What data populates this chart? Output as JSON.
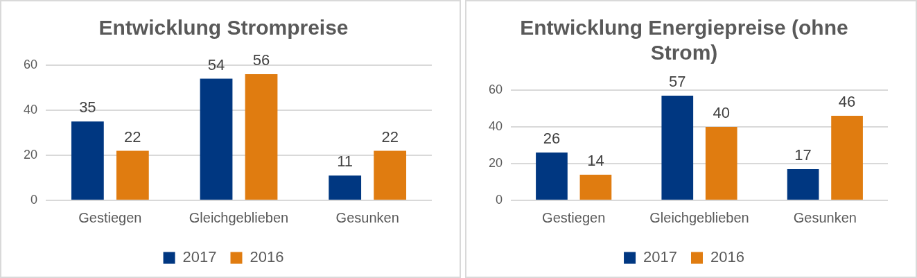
{
  "chart_data": [
    {
      "type": "bar",
      "title": "Entwicklung Strompreise",
      "categories": [
        "Gestiegen",
        "Gleichgeblieben",
        "Gesunken"
      ],
      "series": [
        {
          "name": "2017",
          "color": "#003781",
          "values": [
            35,
            54,
            11
          ]
        },
        {
          "name": "2016",
          "color": "#e07c10",
          "values": [
            22,
            56,
            22
          ]
        }
      ],
      "ylim": [
        0,
        60
      ],
      "yticks": [
        0,
        20,
        40,
        60
      ],
      "grid": "y",
      "legend": "bottom",
      "data_labels": true
    },
    {
      "type": "bar",
      "title": "Entwicklung Energiepreise (ohne Strom)",
      "categories": [
        "Gestiegen",
        "Gleichgeblieben",
        "Gesunken"
      ],
      "series": [
        {
          "name": "2017",
          "color": "#003781",
          "values": [
            26,
            57,
            17
          ]
        },
        {
          "name": "2016",
          "color": "#e07c10",
          "values": [
            14,
            40,
            46
          ]
        }
      ],
      "ylim": [
        0,
        60
      ],
      "yticks": [
        0,
        20,
        40,
        60
      ],
      "grid": "y",
      "legend": "bottom",
      "data_labels": true
    }
  ]
}
